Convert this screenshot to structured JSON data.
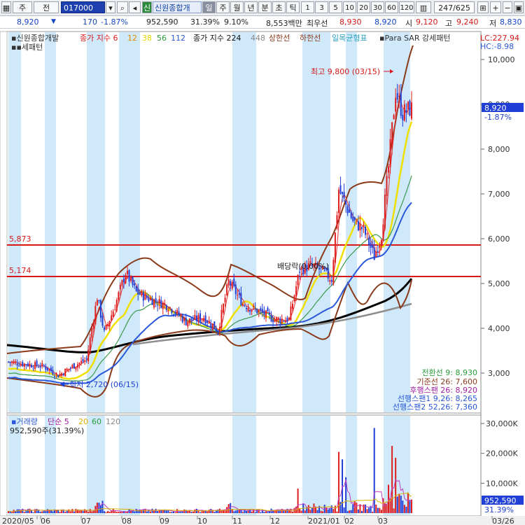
{
  "toolbar": {
    "market": "주",
    "type": "전",
    "code": "017000",
    "badge": "신",
    "name": "신원종합개",
    "periods": [
      "일",
      "주",
      "월",
      "년",
      "분",
      "초",
      "틱"
    ],
    "numbers": [
      "1",
      "3",
      "5",
      "10",
      "20",
      "30",
      "60",
      "120"
    ],
    "counter": "247/625"
  },
  "quote": {
    "price": "8,920",
    "change": "170",
    "change_pct": "-1.87%",
    "volume": "952,590",
    "volume_ratio": "31.39%",
    "turnover_pct": "9.10%",
    "amount": "8,553백만",
    "quote_label": "최우선",
    "ask": "8,930",
    "bid": "8,920",
    "open_label": "시",
    "open": "9,120",
    "high_label": "고",
    "high": "9,240",
    "low_label": "저",
    "low": "8,830"
  },
  "legend": {
    "name": "신원종합개발",
    "ma_label": "종가 지수",
    "ma_periods": [
      "6",
      "12",
      "38",
      "56",
      "112"
    ],
    "ma224": "종가 지수 224",
    "ma448": "448",
    "upper": "상한선",
    "lower": "하한선",
    "ichimoku": "일목균형표",
    "psar": "Para SAR 강세패턴",
    "lc": "LC:227.94",
    "hc": "HC:-8.98"
  },
  "annotations": {
    "high_note": "최고 9,800 (03/15)",
    "low_note": "최저 2,720 (06/15)",
    "dividend": "배당락(0.00%)",
    "line1": "5,873",
    "line2": "5,174",
    "current_price": "8,920",
    "current_pct": "-1.87%"
  },
  "ichimoku_values": [
    "전환선 9: 8,930",
    "기준선 26: 7,600",
    "후행스팬 26: 8,920",
    "선행스팬1 9,26: 8,265",
    "선행스팬2 52,26: 7,360"
  ],
  "volume_legend": {
    "label": "거래량",
    "ma_label": "단순",
    "ma_periods": [
      "5",
      "20",
      "60",
      "120"
    ],
    "value": "952,590주(31.39%)",
    "current": "952,590",
    "current_pct": "31.39%"
  },
  "colors": {
    "up": "#e01e1e",
    "down": "#1f3fd6",
    "highlight": "#cfe9fb",
    "bollinger": "#8b3a1a"
  },
  "chart_data": {
    "type": "candlestick",
    "y_axis_ticks": [
      "10,000",
      "9,000",
      "8,000",
      "7,000",
      "6,000",
      "5,000",
      "4,000",
      "3,000"
    ],
    "y_range": [
      2300,
      10300
    ],
    "volume_ticks": [
      "30,000K",
      "20,000K",
      "10,000K"
    ],
    "x_labels": [
      "2020/05",
      "06",
      "07",
      "08",
      "09",
      "10",
      "11",
      "12",
      "2021/01",
      "02",
      "03",
      "03/26"
    ],
    "horizontal_lines": [
      5873,
      5174
    ],
    "price_path": [
      {
        "i": 0,
        "v": 3250
      },
      {
        "i": 20,
        "v": 3150
      },
      {
        "i": 28,
        "v": 2950
      },
      {
        "i": 36,
        "v": 3150
      },
      {
        "i": 44,
        "v": 3300
      },
      {
        "i": 50,
        "v": 4700
      },
      {
        "i": 54,
        "v": 3900
      },
      {
        "i": 60,
        "v": 4500
      },
      {
        "i": 66,
        "v": 5250
      },
      {
        "i": 72,
        "v": 4800
      },
      {
        "i": 80,
        "v": 4650
      },
      {
        "i": 90,
        "v": 4500
      },
      {
        "i": 100,
        "v": 4150
      },
      {
        "i": 110,
        "v": 4250
      },
      {
        "i": 118,
        "v": 3950
      },
      {
        "i": 124,
        "v": 5050
      },
      {
        "i": 132,
        "v": 4550
      },
      {
        "i": 142,
        "v": 4350
      },
      {
        "i": 150,
        "v": 4200
      },
      {
        "i": 158,
        "v": 4200
      },
      {
        "i": 164,
        "v": 5300
      },
      {
        "i": 170,
        "v": 5400
      },
      {
        "i": 176,
        "v": 5300
      },
      {
        "i": 182,
        "v": 5100
      },
      {
        "i": 186,
        "v": 7100
      },
      {
        "i": 194,
        "v": 6400
      },
      {
        "i": 200,
        "v": 6200
      },
      {
        "i": 206,
        "v": 5600
      },
      {
        "i": 210,
        "v": 6100
      },
      {
        "i": 214,
        "v": 7600
      },
      {
        "i": 218,
        "v": 9300
      },
      {
        "i": 222,
        "v": 8800
      },
      {
        "i": 226,
        "v": 8900
      }
    ],
    "volume_spikes": [
      {
        "i": 186,
        "v": 20500
      },
      {
        "i": 188,
        "v": 18000
      },
      {
        "i": 190,
        "v": 12000
      },
      {
        "i": 163,
        "v": 8200
      },
      {
        "i": 206,
        "v": 28500
      },
      {
        "i": 216,
        "v": 22500
      },
      {
        "i": 218,
        "v": 18500
      },
      {
        "i": 172,
        "v": 3200
      },
      {
        "i": 214,
        "v": 9500
      },
      {
        "i": 220,
        "v": 6500
      }
    ]
  }
}
